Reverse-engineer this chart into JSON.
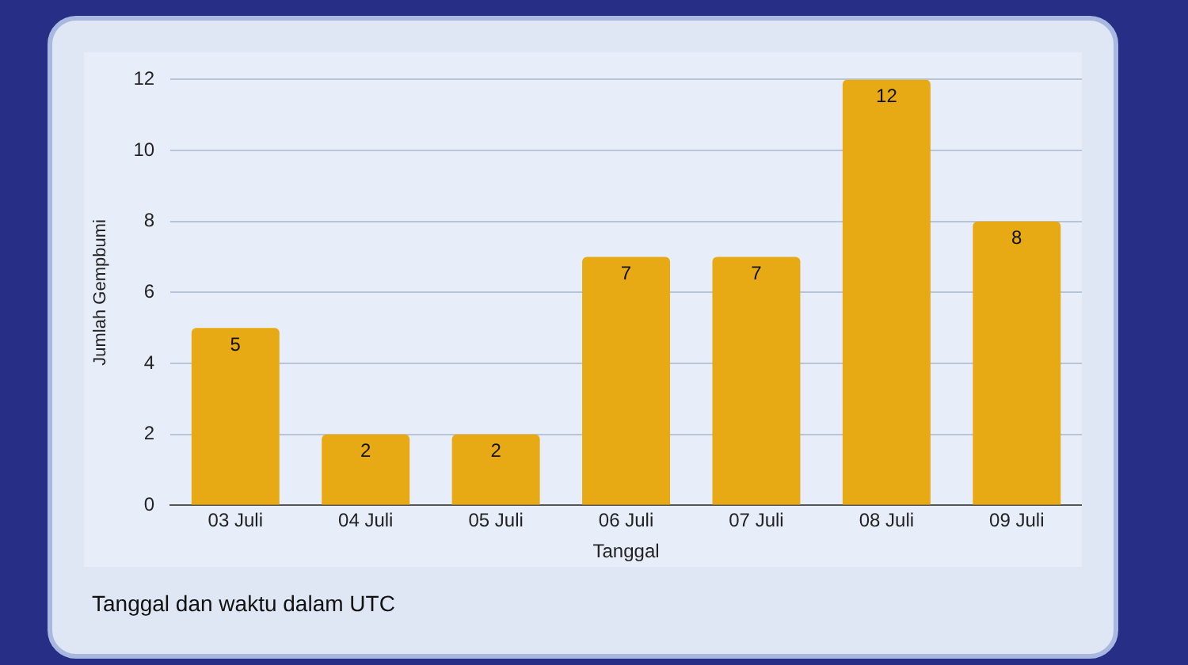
{
  "chart_data": {
    "type": "bar",
    "xlabel": "Tanggal",
    "ylabel": "Jumlah Gempbumi",
    "categories": [
      "03 Juli",
      "04 Juli",
      "05 Juli",
      "06 Juli",
      "07 Juli",
      "08 Juli",
      "09 Juli"
    ],
    "values": [
      5,
      2,
      2,
      7,
      7,
      12,
      8
    ],
    "color": "#e8aa14",
    "ylim": [
      0,
      12
    ],
    "yticks": [
      0,
      2,
      4,
      6,
      8,
      10,
      12
    ],
    "grid": "y",
    "data_labels": true,
    "annotations": [
      "Tanggal dan waktu dalam UTC"
    ]
  }
}
